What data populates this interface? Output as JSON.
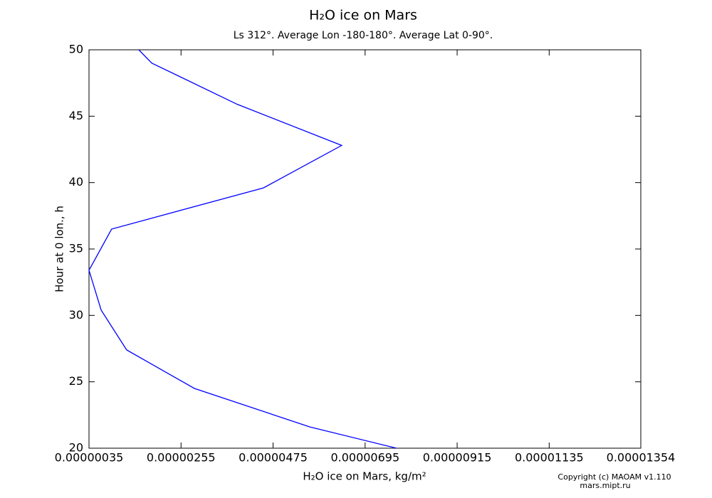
{
  "chart_data": {
    "type": "line",
    "title": "H₂O ice on Mars",
    "subtitle": "Ls 312°. Average Lon -180-180°. Average Lat 0-90°.",
    "x_label": "H₂O ice on Mars, kg/m²",
    "y_label": "Hour at 0 lon., h",
    "footer": [
      "Copyright (c) MAOAM v1.110",
      "mars.mipt.ru"
    ],
    "color": "#0000ff",
    "y": [
      20,
      21.6,
      24.5,
      27.4,
      30.4,
      33.4,
      36.5,
      39.6,
      42.8,
      45.9,
      49,
      50
    ],
    "values": [
      7.7e-06,
      5.63e-06,
      2.87e-06,
      1.25e-06,
      6.4e-07,
      3.5e-07,
      8.9e-07,
      4.52e-06,
      6.39e-06,
      3.89e-06,
      1.85e-06,
      1.54e-06
    ],
    "xlim": [
      3.5e-07,
      1.354e-05
    ],
    "xticks": [
      {
        "value": 3.5e-07,
        "label": "0.00000035"
      },
      {
        "value": 2.55e-06,
        "label": "0.00000255"
      },
      {
        "value": 4.75e-06,
        "label": "0.00000475"
      },
      {
        "value": 6.95e-06,
        "label": "0.00000695"
      },
      {
        "value": 9.15e-06,
        "label": "0.00000915"
      },
      {
        "value": 1.135e-05,
        "label": "0.00001135"
      },
      {
        "value": 1.354e-05,
        "label": "0.00001354"
      }
    ],
    "ylim": [
      20,
      50
    ],
    "yticks": [
      20,
      25,
      30,
      35,
      40,
      45,
      50
    ]
  }
}
